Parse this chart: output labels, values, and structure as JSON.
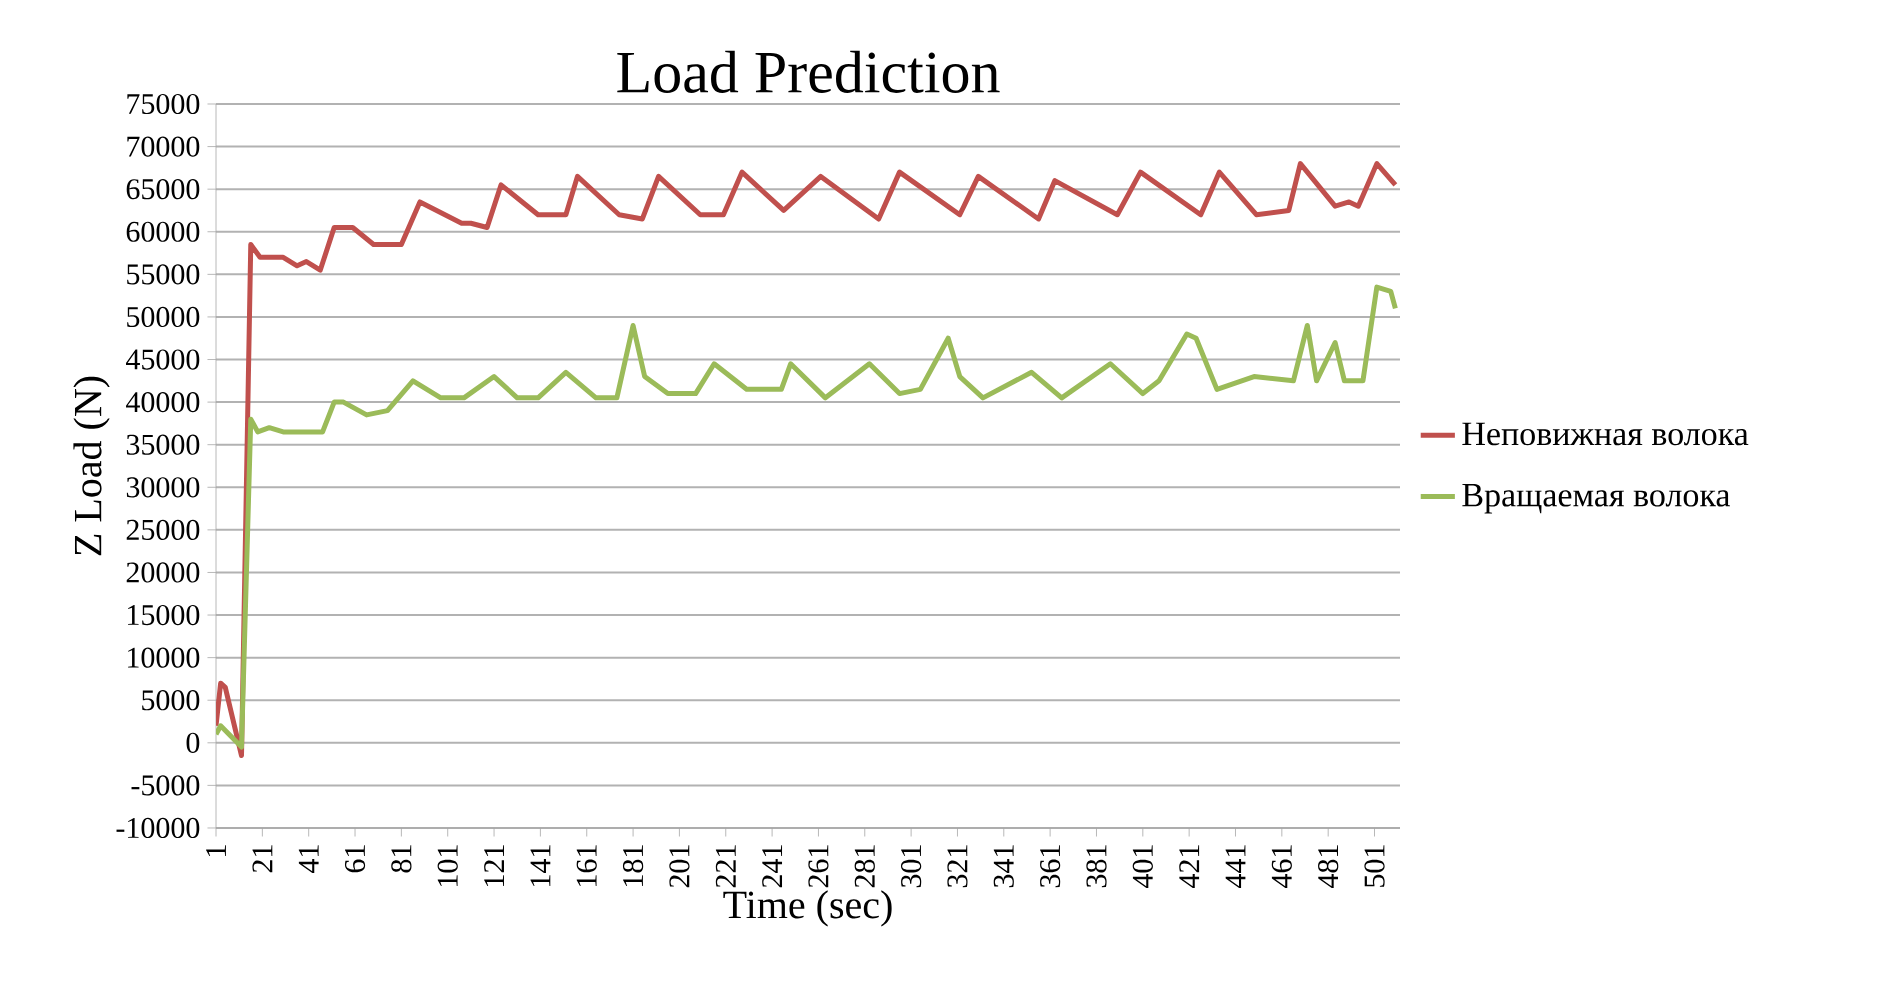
{
  "chart_data": {
    "type": "line",
    "title": "Load Prediction",
    "xlabel": "Time (sec)",
    "ylabel": "Z Load (N)",
    "xlim": [
      1,
      512
    ],
    "xticks": [
      1,
      21,
      41,
      61,
      81,
      101,
      121,
      141,
      161,
      181,
      201,
      221,
      241,
      261,
      281,
      301,
      321,
      341,
      361,
      381,
      401,
      421,
      441,
      461,
      481,
      501
    ],
    "ylim": [
      -10000,
      75000
    ],
    "yticks": [
      -10000,
      -5000,
      0,
      5000,
      10000,
      15000,
      20000,
      25000,
      30000,
      35000,
      40000,
      45000,
      50000,
      55000,
      60000,
      65000,
      70000,
      75000
    ],
    "grid": "y",
    "legend": "right",
    "marker": "none",
    "line_style": "solid",
    "series": [
      {
        "name": "Неповижная волока",
        "color": "#c0504d",
        "x": [
          1,
          3,
          5,
          12,
          16,
          20,
          30,
          36,
          40,
          46,
          52,
          60,
          69,
          81,
          89,
          107,
          111,
          118,
          124,
          140,
          152,
          157,
          175,
          185,
          192,
          210,
          220,
          228,
          246,
          262,
          287,
          296,
          322,
          330,
          356,
          363,
          390,
          400,
          426,
          434,
          450,
          464,
          469,
          484,
          490,
          494,
          502,
          510
        ],
        "values": [
          2000,
          7000,
          6500,
          -1500,
          58500,
          57000,
          57000,
          56000,
          56500,
          55500,
          60500,
          60500,
          58500,
          58500,
          63500,
          61000,
          61000,
          60500,
          65500,
          62000,
          62000,
          66500,
          62000,
          61500,
          66500,
          62000,
          62000,
          67000,
          62500,
          66500,
          61500,
          67000,
          62000,
          66500,
          61500,
          66000,
          62000,
          67000,
          62000,
          67000,
          62000,
          62500,
          68000,
          63000,
          63500,
          63000,
          68000,
          65500
        ]
      },
      {
        "name": "Вращаемая волока",
        "color": "#9bbb59",
        "x": [
          1,
          3,
          12,
          16,
          19,
          24,
          30,
          38,
          47,
          52,
          56,
          66,
          75,
          86,
          98,
          108,
          121,
          131,
          140,
          152,
          165,
          174,
          181,
          186,
          196,
          208,
          216,
          230,
          245,
          249,
          264,
          283,
          296,
          305,
          317,
          322,
          332,
          353,
          366,
          387,
          401,
          408,
          420,
          424,
          433,
          449,
          466,
          472,
          476,
          484,
          488,
          496,
          502,
          508,
          510
        ],
        "values": [
          1000,
          2000,
          -500,
          38000,
          36500,
          37000,
          36500,
          36500,
          36500,
          40000,
          40000,
          38500,
          39000,
          42500,
          40500,
          40500,
          43000,
          40500,
          40500,
          43500,
          40500,
          40500,
          49000,
          43000,
          41000,
          41000,
          44500,
          41500,
          41500,
          44500,
          40500,
          44500,
          41000,
          41500,
          47500,
          43000,
          40500,
          43500,
          40500,
          44500,
          41000,
          42500,
          48000,
          47500,
          41500,
          43000,
          42500,
          49000,
          42500,
          47000,
          42500,
          42500,
          53500,
          53000,
          51000
        ]
      }
    ]
  }
}
